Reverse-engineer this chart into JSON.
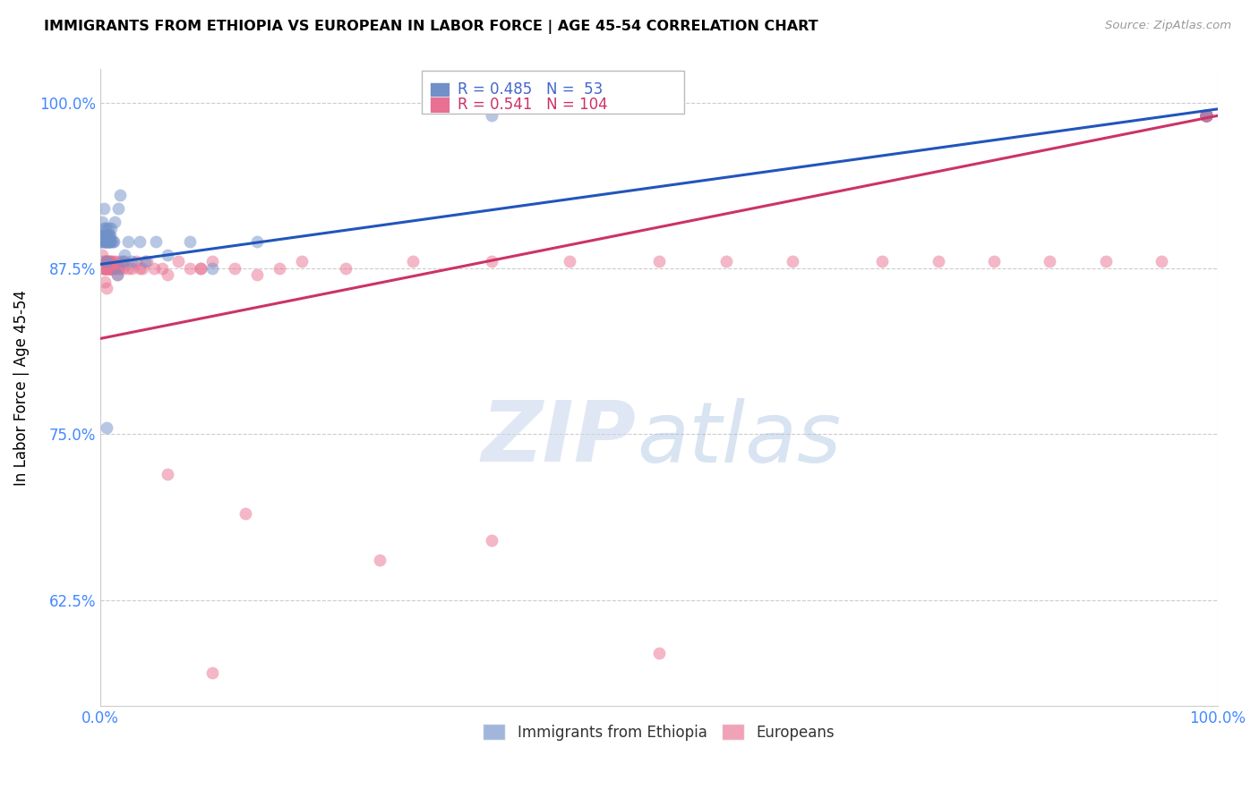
{
  "title": "IMMIGRANTS FROM ETHIOPIA VS EUROPEAN IN LABOR FORCE | AGE 45-54 CORRELATION CHART",
  "source": "Source: ZipAtlas.com",
  "ylabel": "In Labor Force | Age 45-54",
  "blue_R": 0.485,
  "blue_N": 53,
  "pink_R": 0.541,
  "pink_N": 104,
  "blue_color": "#7090c8",
  "pink_color": "#e87090",
  "blue_line_color": "#2255bb",
  "pink_line_color": "#cc3366",
  "xlim": [
    0.0,
    1.0
  ],
  "ylim": [
    0.545,
    1.025
  ],
  "y_tick_vals": [
    0.625,
    0.75,
    0.875,
    1.0
  ],
  "y_tick_labels": [
    "62.5%",
    "75.0%",
    "87.5%",
    "100.0%"
  ],
  "x_tick_vals": [
    0.0,
    1.0
  ],
  "x_tick_labels": [
    "0.0%",
    "100.0%"
  ],
  "blue_line_x": [
    0.0,
    1.0
  ],
  "blue_line_y": [
    0.878,
    0.995
  ],
  "pink_line_x": [
    0.0,
    1.0
  ],
  "pink_line_y": [
    0.822,
    0.99
  ],
  "blue_points_x": [
    0.001,
    0.001,
    0.002,
    0.002,
    0.002,
    0.003,
    0.003,
    0.003,
    0.003,
    0.004,
    0.004,
    0.004,
    0.004,
    0.005,
    0.005,
    0.005,
    0.005,
    0.006,
    0.006,
    0.006,
    0.006,
    0.006,
    0.007,
    0.007,
    0.007,
    0.007,
    0.008,
    0.008,
    0.008,
    0.009,
    0.009,
    0.01,
    0.01,
    0.011,
    0.012,
    0.013,
    0.015,
    0.016,
    0.018,
    0.02,
    0.022,
    0.025,
    0.028,
    0.035,
    0.04,
    0.05,
    0.06,
    0.08,
    0.1,
    0.14,
    0.006,
    0.35,
    0.99
  ],
  "blue_points_y": [
    0.895,
    0.9,
    0.895,
    0.9,
    0.91,
    0.895,
    0.9,
    0.905,
    0.92,
    0.895,
    0.9,
    0.9,
    0.895,
    0.895,
    0.9,
    0.905,
    0.895,
    0.895,
    0.9,
    0.895,
    0.9,
    0.88,
    0.895,
    0.9,
    0.905,
    0.895,
    0.895,
    0.9,
    0.895,
    0.895,
    0.9,
    0.895,
    0.905,
    0.895,
    0.895,
    0.91,
    0.87,
    0.92,
    0.93,
    0.88,
    0.885,
    0.895,
    0.88,
    0.895,
    0.88,
    0.895,
    0.885,
    0.895,
    0.875,
    0.895,
    0.755,
    0.99,
    0.99
  ],
  "pink_points_x": [
    0.002,
    0.002,
    0.003,
    0.003,
    0.003,
    0.004,
    0.004,
    0.004,
    0.004,
    0.005,
    0.005,
    0.005,
    0.005,
    0.006,
    0.006,
    0.006,
    0.006,
    0.007,
    0.007,
    0.007,
    0.007,
    0.008,
    0.008,
    0.008,
    0.008,
    0.009,
    0.009,
    0.009,
    0.01,
    0.01,
    0.01,
    0.011,
    0.011,
    0.012,
    0.013,
    0.014,
    0.015,
    0.016,
    0.017,
    0.018,
    0.02,
    0.022,
    0.025,
    0.028,
    0.032,
    0.035,
    0.038,
    0.042,
    0.048,
    0.055,
    0.06,
    0.07,
    0.08,
    0.09,
    0.1,
    0.12,
    0.14,
    0.16,
    0.06,
    0.09,
    0.13,
    0.18,
    0.22,
    0.28,
    0.35,
    0.42,
    0.5,
    0.56,
    0.62,
    0.7,
    0.75,
    0.8,
    0.85,
    0.9,
    0.95,
    0.99,
    0.99,
    0.99,
    0.99,
    0.99,
    0.99,
    0.99,
    0.99,
    0.99,
    0.99,
    0.99,
    0.99,
    0.99,
    0.99,
    0.99,
    0.99,
    0.99,
    0.99,
    0.99,
    0.99,
    0.99,
    0.99,
    0.99,
    0.99,
    0.99,
    0.35,
    0.5,
    0.1,
    0.25
  ],
  "pink_points_y": [
    0.875,
    0.885,
    0.875,
    0.88,
    0.875,
    0.875,
    0.88,
    0.875,
    0.865,
    0.875,
    0.875,
    0.88,
    0.875,
    0.875,
    0.88,
    0.875,
    0.86,
    0.875,
    0.875,
    0.88,
    0.875,
    0.875,
    0.88,
    0.875,
    0.875,
    0.875,
    0.88,
    0.875,
    0.875,
    0.88,
    0.875,
    0.875,
    0.88,
    0.875,
    0.875,
    0.88,
    0.87,
    0.875,
    0.875,
    0.88,
    0.875,
    0.88,
    0.875,
    0.875,
    0.88,
    0.875,
    0.875,
    0.88,
    0.875,
    0.875,
    0.87,
    0.88,
    0.875,
    0.875,
    0.88,
    0.875,
    0.87,
    0.875,
    0.72,
    0.875,
    0.69,
    0.88,
    0.875,
    0.88,
    0.88,
    0.88,
    0.88,
    0.88,
    0.88,
    0.88,
    0.88,
    0.88,
    0.88,
    0.88,
    0.88,
    0.99,
    0.99,
    0.99,
    0.99,
    0.99,
    0.99,
    0.99,
    0.99,
    0.99,
    0.99,
    0.99,
    0.99,
    0.99,
    0.99,
    0.99,
    0.99,
    0.99,
    0.99,
    0.99,
    0.99,
    0.99,
    0.99,
    0.99,
    0.99,
    0.99,
    0.67,
    0.585,
    0.57,
    0.655
  ]
}
